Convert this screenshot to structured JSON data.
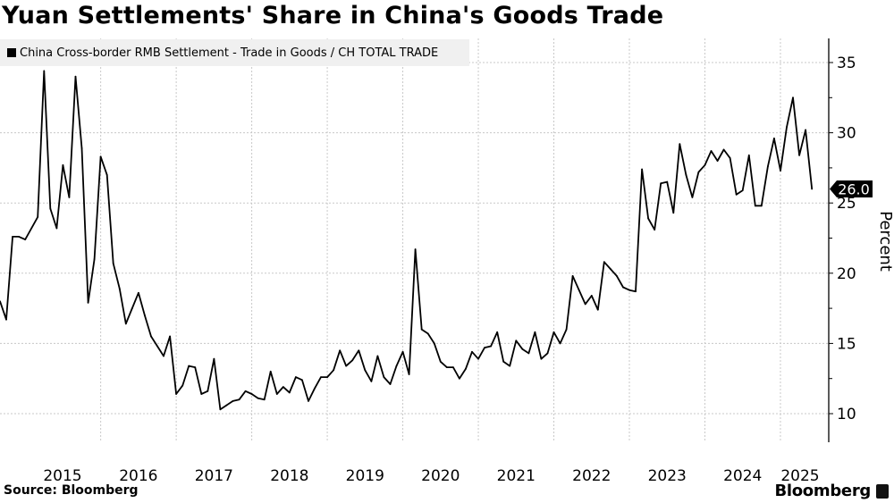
{
  "title": "Yuan Settlements' Share in China's Goods Trade",
  "source": "Source: Bloomberg",
  "logo_text": "Bloomberg",
  "colors": {
    "line": "#000000",
    "grid": "#c8c8c8",
    "legend_bg": "#f0f0f0",
    "last_value_tag": "#000000"
  },
  "chart_data": {
    "type": "line",
    "title": "Yuan Settlements' Share in China's Goods Trade",
    "ylabel": "Percent",
    "xlabel": "",
    "ylim": [
      8,
      37
    ],
    "yticks": [
      10,
      15,
      20,
      25,
      30,
      35
    ],
    "xtick_labels": [
      "2015",
      "2016",
      "2017",
      "2018",
      "2019",
      "2020",
      "2021",
      "2022",
      "2023",
      "2024",
      "2025"
    ],
    "grid": true,
    "y_axis_side": "right",
    "legend": "top-left",
    "last_value_label": "26.0",
    "series": [
      {
        "name": "China Cross-border RMB Settlement - Trade in Goods / CH TOTAL TRADE",
        "x": [
          "2014-09",
          "2014-10",
          "2014-11",
          "2014-12",
          "2015-01",
          "2015-02",
          "2015-03",
          "2015-04",
          "2015-05",
          "2015-06",
          "2015-07",
          "2015-08",
          "2015-09",
          "2015-10",
          "2015-11",
          "2015-12",
          "2016-01",
          "2016-02",
          "2016-03",
          "2016-04",
          "2016-05",
          "2016-06",
          "2016-07",
          "2016-08",
          "2016-09",
          "2016-10",
          "2016-11",
          "2016-12",
          "2017-01",
          "2017-02",
          "2017-03",
          "2017-04",
          "2017-05",
          "2017-06",
          "2017-07",
          "2017-08",
          "2017-09",
          "2017-10",
          "2017-11",
          "2017-12",
          "2018-01",
          "2018-02",
          "2018-03",
          "2018-04",
          "2018-05",
          "2018-06",
          "2018-07",
          "2018-08",
          "2018-09",
          "2018-10",
          "2018-11",
          "2018-12",
          "2019-01",
          "2019-02",
          "2019-03",
          "2019-04",
          "2019-05",
          "2019-06",
          "2019-07",
          "2019-08",
          "2019-09",
          "2019-10",
          "2019-11",
          "2019-12",
          "2020-01",
          "2020-02",
          "2020-03",
          "2020-04",
          "2020-05",
          "2020-06",
          "2020-07",
          "2020-08",
          "2020-09",
          "2020-10",
          "2020-11",
          "2020-12",
          "2021-01",
          "2021-02",
          "2021-03",
          "2021-04",
          "2021-05",
          "2021-06",
          "2021-07",
          "2021-08",
          "2021-09",
          "2021-10",
          "2021-11",
          "2021-12",
          "2022-01",
          "2022-02",
          "2022-03",
          "2022-04",
          "2022-05",
          "2022-06",
          "2022-07",
          "2022-08",
          "2022-09",
          "2022-10",
          "2022-11",
          "2022-12",
          "2023-01",
          "2023-02",
          "2023-03",
          "2023-04",
          "2023-05",
          "2023-06",
          "2023-07",
          "2023-08",
          "2023-09",
          "2023-10",
          "2023-11",
          "2023-12",
          "2024-01",
          "2024-02",
          "2024-03",
          "2024-04",
          "2024-05",
          "2024-06",
          "2024-07",
          "2024-08",
          "2024-09",
          "2024-10",
          "2024-11",
          "2024-12",
          "2025-01",
          "2025-02",
          "2025-03",
          "2025-04",
          "2025-05",
          "2025-06"
        ],
        "values": [
          18.0,
          16.7,
          22.6,
          22.6,
          22.4,
          23.2,
          24.0,
          34.4,
          24.6,
          23.2,
          27.7,
          25.4,
          34.0,
          28.9,
          17.9,
          21.0,
          28.3,
          27.0,
          20.7,
          18.9,
          16.4,
          17.5,
          18.6,
          17.0,
          15.5,
          14.8,
          14.1,
          15.5,
          11.4,
          12.0,
          13.4,
          13.3,
          11.4,
          11.6,
          13.9,
          10.3,
          10.6,
          10.9,
          11.0,
          11.6,
          11.4,
          11.1,
          11.0,
          13.0,
          11.4,
          11.9,
          11.5,
          12.6,
          12.4,
          10.9,
          11.8,
          12.6,
          12.6,
          13.1,
          14.5,
          13.4,
          13.8,
          14.5,
          13.1,
          12.3,
          14.1,
          12.6,
          12.1,
          13.4,
          14.4,
          12.8,
          21.7,
          16.0,
          15.7,
          15.0,
          13.7,
          13.3,
          13.3,
          12.5,
          13.2,
          14.4,
          13.9,
          14.7,
          14.8,
          15.8,
          13.7,
          13.4,
          15.2,
          14.6,
          14.3,
          15.8,
          13.9,
          14.3,
          15.8,
          15.0,
          16.0,
          19.8,
          18.8,
          17.8,
          18.4,
          17.4,
          20.8,
          20.3,
          19.8,
          19.0,
          18.8,
          18.7,
          27.4,
          23.9,
          23.1,
          26.4,
          26.5,
          24.3,
          29.2,
          27.0,
          25.4,
          27.2,
          27.7,
          28.7,
          28.0,
          28.8,
          28.2,
          25.6,
          25.9,
          28.4,
          24.8,
          24.8,
          27.6,
          29.6,
          27.3,
          30.4,
          32.5,
          28.4,
          30.2,
          26.0
        ]
      }
    ]
  }
}
